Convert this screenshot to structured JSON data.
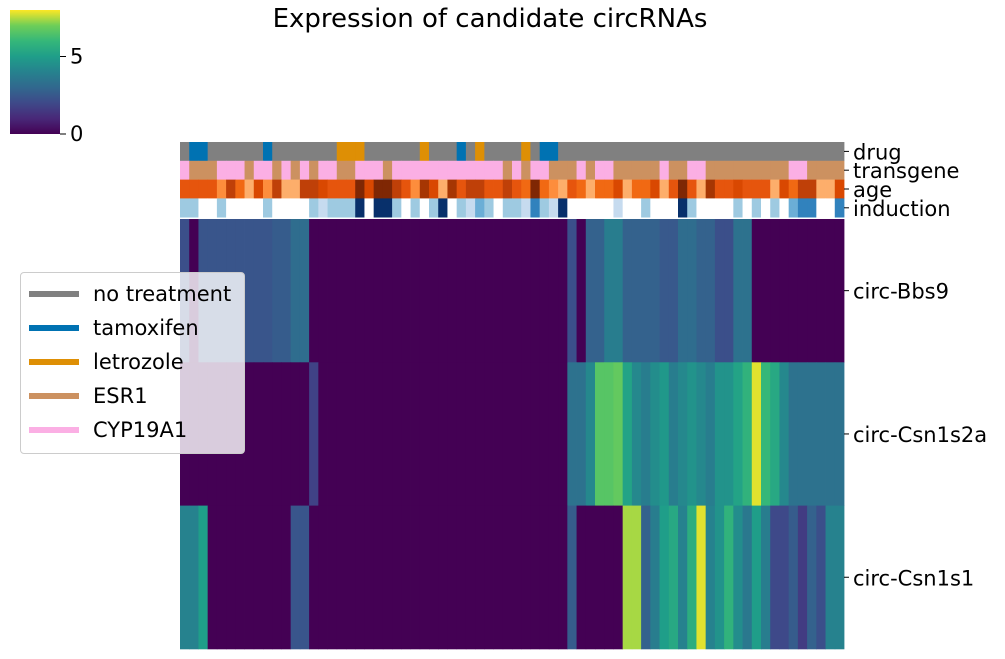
{
  "title": "Expression of candidate circRNAs",
  "chart_data": {
    "type": "heatmap",
    "title": "Expression of candidate circRNAs",
    "rows": [
      "circ-Bbs9",
      "circ-Csn1s2a",
      "circ-Csn1s1"
    ],
    "n_columns": 72,
    "colormap": "viridis",
    "vmin": 0,
    "vmax": 8,
    "colorbar_ticks": [
      0,
      5
    ],
    "values": [
      [
        2.2,
        0,
        2.4,
        2.4,
        2.4,
        2.4,
        2.4,
        2.4,
        2.4,
        2.4,
        2.6,
        2.6,
        3.2,
        3.2,
        0,
        0,
        0,
        0,
        0,
        0,
        0,
        0,
        0,
        0,
        0,
        0,
        0,
        0,
        0,
        0,
        0,
        0,
        0,
        0,
        0,
        0,
        0,
        0,
        0,
        0,
        0,
        0,
        2.2,
        0,
        2.8,
        2.8,
        3.8,
        3.8,
        2.8,
        2.8,
        2.8,
        2.8,
        2.5,
        2.5,
        3.2,
        3.2,
        2.8,
        2.8,
        2.2,
        2.2,
        3.4,
        3.4,
        0,
        0,
        0,
        0,
        0,
        0,
        0,
        0,
        0,
        0
      ],
      [
        0,
        0,
        0,
        0,
        0,
        0,
        0,
        0,
        0,
        0,
        0,
        0,
        0,
        0,
        1.8,
        0,
        0,
        0,
        0,
        0,
        0,
        0,
        0,
        0,
        0,
        0,
        0,
        0,
        0,
        0,
        0,
        0,
        0,
        0,
        0,
        0,
        0,
        0,
        0,
        0,
        0,
        0,
        3.4,
        3.4,
        4.2,
        6.6,
        6.6,
        6.8,
        5.2,
        4.2,
        3.8,
        4.4,
        4.8,
        3.8,
        4.2,
        4.6,
        4.2,
        3.8,
        4.6,
        4.6,
        5.2,
        5.8,
        7.8,
        6.0,
        5.4,
        4.2,
        3.4,
        3.4,
        3.4,
        3.4,
        3.4,
        3.4
      ],
      [
        4.0,
        4.0,
        5.0,
        0,
        0,
        0,
        0,
        0,
        0,
        0,
        0,
        0,
        2.4,
        2.4,
        0,
        0,
        0,
        0,
        0,
        0,
        0,
        0,
        0,
        0,
        0,
        0,
        0,
        0,
        0,
        0,
        0,
        0,
        0,
        0,
        0,
        0,
        0,
        0,
        0,
        0,
        0,
        0,
        2.6,
        0,
        0,
        0,
        0,
        0,
        7.4,
        7.4,
        2.8,
        3.8,
        5.0,
        5.4,
        4.0,
        5.6,
        7.8,
        4.0,
        4.6,
        5.8,
        4.4,
        3.6,
        5.0,
        3.8,
        2.0,
        2.0,
        2.6,
        1.6,
        2.8,
        2.2,
        4.0,
        4.0
      ]
    ],
    "annotation_tracks": [
      "drug",
      "transgene",
      "age",
      "induction"
    ],
    "drug": [
      "no treatment",
      "tamoxifen",
      "tamoxifen",
      "no treatment",
      "no treatment",
      "no treatment",
      "no treatment",
      "no treatment",
      "no treatment",
      "tamoxifen",
      "no treatment",
      "no treatment",
      "no treatment",
      "no treatment",
      "no treatment",
      "no treatment",
      "no treatment",
      "letrozole",
      "letrozole",
      "letrozole",
      "no treatment",
      "no treatment",
      "no treatment",
      "no treatment",
      "no treatment",
      "no treatment",
      "letrozole",
      "no treatment",
      "no treatment",
      "no treatment",
      "tamoxifen",
      "no treatment",
      "letrozole",
      "no treatment",
      "no treatment",
      "no treatment",
      "no treatment",
      "letrozole",
      "no treatment",
      "tamoxifen",
      "tamoxifen",
      "no treatment",
      "no treatment",
      "no treatment",
      "no treatment",
      "no treatment",
      "no treatment",
      "no treatment",
      "no treatment",
      "no treatment",
      "no treatment",
      "no treatment",
      "no treatment",
      "no treatment",
      "no treatment",
      "no treatment",
      "no treatment",
      "no treatment",
      "no treatment",
      "no treatment",
      "no treatment",
      "no treatment",
      "no treatment",
      "no treatment",
      "no treatment",
      "no treatment",
      "no treatment",
      "no treatment",
      "no treatment",
      "no treatment",
      "no treatment",
      "no treatment"
    ],
    "transgene": [
      "CYP19A1",
      "ESR1",
      "ESR1",
      "ESR1",
      "CYP19A1",
      "CYP19A1",
      "CYP19A1",
      "ESR1",
      "CYP19A1",
      "CYP19A1",
      "ESR1",
      "CYP19A1",
      "ESR1",
      "CYP19A1",
      "ESR1",
      "CYP19A1",
      "CYP19A1",
      "ESR1",
      "ESR1",
      "CYP19A1",
      "CYP19A1",
      "CYP19A1",
      "ESR1",
      "CYP19A1",
      "CYP19A1",
      "CYP19A1",
      "CYP19A1",
      "CYP19A1",
      "CYP19A1",
      "CYP19A1",
      "CYP19A1",
      "CYP19A1",
      "CYP19A1",
      "CYP19A1",
      "CYP19A1",
      "ESR1",
      "CYP19A1",
      "ESR1",
      "CYP19A1",
      "CYP19A1",
      "ESR1",
      "ESR1",
      "ESR1",
      "CYP19A1",
      "ESR1",
      "CYP19A1",
      "CYP19A1",
      "ESR1",
      "ESR1",
      "ESR1",
      "ESR1",
      "ESR1",
      "CYP19A1",
      "ESR1",
      "ESR1",
      "CYP19A1",
      "CYP19A1",
      "ESR1",
      "ESR1",
      "ESR1",
      "ESR1",
      "ESR1",
      "ESR1",
      "ESR1",
      "ESR1",
      "ESR1",
      "CYP19A1",
      "CYP19A1",
      "ESR1",
      "ESR1",
      "ESR1",
      "ESR1"
    ],
    "age_colors": [
      "#e6550d",
      "#e6550d",
      "#e6550d",
      "#e6550d",
      "#fd8d3c",
      "#bf4008",
      "#f16913",
      "#fdae6b",
      "#d94801",
      "#fd8d3c",
      "#bf4008",
      "#fdae6b",
      "#fdae6b",
      "#bf4008",
      "#bf4008",
      "#d94801",
      "#e6550d",
      "#e6550d",
      "#e6550d",
      "#7f2704",
      "#d94801",
      "#7f2704",
      "#7f2704",
      "#bf4008",
      "#e6550d",
      "#fd8d3c",
      "#a63603",
      "#d94801",
      "#fdae6b",
      "#a63603",
      "#e6550d",
      "#bf4008",
      "#bf4008",
      "#e6550d",
      "#e6550d",
      "#bf4008",
      "#e6550d",
      "#f16913",
      "#7f2704",
      "#f16913",
      "#fd8d3c",
      "#fdae6b",
      "#e6550d",
      "#f16913",
      "#fdae6b",
      "#f16913",
      "#f16913",
      "#d94801",
      "#fdae6b",
      "#f16913",
      "#f16913",
      "#d94801",
      "#fdae6b",
      "#e6550d",
      "#7f2704",
      "#e6550d",
      "#fdae6b",
      "#a63603",
      "#e6550d",
      "#e6550d",
      "#d94801",
      "#e6550d",
      "#e6550d",
      "#e6550d",
      "#fdae6b",
      "#d94801",
      "#f16913",
      "#bf4008",
      "#bf4008",
      "#fdae6b",
      "#fdae6b",
      "#d94801"
    ],
    "induction_colors": [
      "#9ecae1",
      "#9ecae1",
      "#ffffff",
      "#ffffff",
      "#9ecae1",
      "#ffffff",
      "#ffffff",
      "#ffffff",
      "#ffffff",
      "#9ecae1",
      "#ffffff",
      "#ffffff",
      "#ffffff",
      "#ffffff",
      "#9ecae1",
      "#c6dbef",
      "#9ecae1",
      "#9ecae1",
      "#9ecae1",
      "#08306b",
      "#ffffff",
      "#08306b",
      "#08306b",
      "#9ecae1",
      "#ffffff",
      "#9ecae1",
      "#ffffff",
      "#9ecae1",
      "#08306b",
      "#ffffff",
      "#9ecae1",
      "#c6dbef",
      "#6baed6",
      "#9ecae1",
      "#ffffff",
      "#9ecae1",
      "#9ecae1",
      "#c6dbef",
      "#3182bd",
      "#9ecae1",
      "#c6dbef",
      "#08306b",
      "#ffffff",
      "#ffffff",
      "#ffffff",
      "#ffffff",
      "#ffffff",
      "#c6dbef",
      "#ffffff",
      "#ffffff",
      "#9ecae1",
      "#ffffff",
      "#ffffff",
      "#ffffff",
      "#08306b",
      "#9ecae1",
      "#ffffff",
      "#ffffff",
      "#ffffff",
      "#ffffff",
      "#9ecae1",
      "#ffffff",
      "#9ecae1",
      "#ffffff",
      "#9ecae1",
      "#ffffff",
      "#6baed6",
      "#3182bd",
      "#3182bd",
      "#ffffff",
      "#ffffff",
      "#3182bd"
    ],
    "legend": {
      "placement": "center-left",
      "items": [
        {
          "label": "no treatment",
          "color": "#808080"
        },
        {
          "label": "tamoxifen",
          "color": "#0072b2"
        },
        {
          "label": "letrozole",
          "color": "#de8f05"
        },
        {
          "label": "ESR1",
          "color": "#cc9160"
        },
        {
          "label": "CYP19A1",
          "color": "#fbafe4"
        }
      ]
    }
  }
}
